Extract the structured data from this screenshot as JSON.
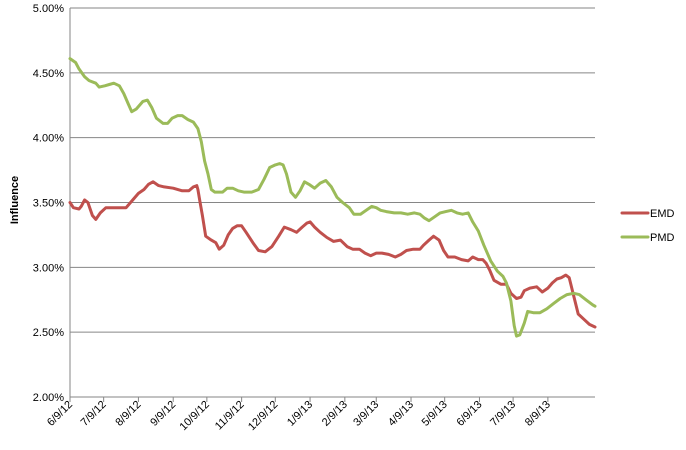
{
  "chart_data": {
    "type": "line",
    "title": "",
    "xlabel": "",
    "ylabel": "Influence",
    "ylim": [
      2.0,
      5.0
    ],
    "y_ticks": [
      "2.00%",
      "2.50%",
      "3.00%",
      "3.50%",
      "4.00%",
      "4.50%",
      "5.00%"
    ],
    "x_range": [
      "2012-06-09",
      "2013-09-20"
    ],
    "x_ticks": [
      "6/9/12",
      "7/9/12",
      "8/9/12",
      "9/9/12",
      "10/9/12",
      "11/9/12",
      "12/9/12",
      "1/9/13",
      "2/9/13",
      "3/9/13",
      "4/9/13",
      "5/9/13",
      "6/9/13",
      "7/9/13",
      "8/9/13"
    ],
    "grid": "horizontal",
    "legend_position": "right",
    "series": [
      {
        "name": "EMD",
        "color": "#c0504d",
        "points": [
          [
            "2012-06-09",
            3.5
          ],
          [
            "2012-06-12",
            3.46
          ],
          [
            "2012-06-17",
            3.45
          ],
          [
            "2012-06-19",
            3.47
          ],
          [
            "2012-06-22",
            3.52
          ],
          [
            "2012-06-25",
            3.5
          ],
          [
            "2012-06-29",
            3.4
          ],
          [
            "2012-07-02",
            3.37
          ],
          [
            "2012-07-06",
            3.42
          ],
          [
            "2012-07-11",
            3.46
          ],
          [
            "2012-07-17",
            3.46
          ],
          [
            "2012-07-23",
            3.46
          ],
          [
            "2012-07-29",
            3.46
          ],
          [
            "2012-08-04",
            3.52
          ],
          [
            "2012-08-09",
            3.57
          ],
          [
            "2012-08-14",
            3.6
          ],
          [
            "2012-08-18",
            3.64
          ],
          [
            "2012-08-22",
            3.66
          ],
          [
            "2012-08-27",
            3.63
          ],
          [
            "2012-09-01",
            3.62
          ],
          [
            "2012-09-09",
            3.61
          ],
          [
            "2012-09-17",
            3.59
          ],
          [
            "2012-09-23",
            3.59
          ],
          [
            "2012-09-27",
            3.62
          ],
          [
            "2012-09-30",
            3.63
          ],
          [
            "2012-10-01",
            3.6
          ],
          [
            "2012-10-03",
            3.5
          ],
          [
            "2012-10-05",
            3.4
          ],
          [
            "2012-10-08",
            3.24
          ],
          [
            "2012-10-13",
            3.21
          ],
          [
            "2012-10-17",
            3.19
          ],
          [
            "2012-10-20",
            3.14
          ],
          [
            "2012-10-24",
            3.17
          ],
          [
            "2012-10-28",
            3.25
          ],
          [
            "2012-11-01",
            3.3
          ],
          [
            "2012-11-05",
            3.32
          ],
          [
            "2012-11-09",
            3.32
          ],
          [
            "2012-11-13",
            3.27
          ],
          [
            "2012-11-19",
            3.19
          ],
          [
            "2012-11-24",
            3.13
          ],
          [
            "2012-11-30",
            3.12
          ],
          [
            "2012-12-06",
            3.16
          ],
          [
            "2012-12-12",
            3.24
          ],
          [
            "2012-12-17",
            3.31
          ],
          [
            "2012-12-23",
            3.29
          ],
          [
            "2012-12-28",
            3.27
          ],
          [
            "2013-01-02",
            3.31
          ],
          [
            "2013-01-06",
            3.34
          ],
          [
            "2013-01-09",
            3.35
          ],
          [
            "2013-01-13",
            3.31
          ],
          [
            "2013-01-18",
            3.27
          ],
          [
            "2013-01-24",
            3.23
          ],
          [
            "2013-01-30",
            3.2
          ],
          [
            "2013-02-05",
            3.21
          ],
          [
            "2013-02-11",
            3.16
          ],
          [
            "2013-02-16",
            3.14
          ],
          [
            "2013-02-22",
            3.14
          ],
          [
            "2013-02-27",
            3.11
          ],
          [
            "2013-03-04",
            3.09
          ],
          [
            "2013-03-09",
            3.11
          ],
          [
            "2013-03-14",
            3.11
          ],
          [
            "2013-03-20",
            3.1
          ],
          [
            "2013-03-26",
            3.08
          ],
          [
            "2013-03-31",
            3.1
          ],
          [
            "2013-04-05",
            3.13
          ],
          [
            "2013-04-11",
            3.14
          ],
          [
            "2013-04-17",
            3.14
          ],
          [
            "2013-04-20",
            3.17
          ],
          [
            "2013-04-25",
            3.21
          ],
          [
            "2013-04-29",
            3.24
          ],
          [
            "2013-05-04",
            3.21
          ],
          [
            "2013-05-08",
            3.13
          ],
          [
            "2013-05-12",
            3.08
          ],
          [
            "2013-05-18",
            3.08
          ],
          [
            "2013-05-24",
            3.06
          ],
          [
            "2013-05-30",
            3.05
          ],
          [
            "2013-06-03",
            3.08
          ],
          [
            "2013-06-08",
            3.06
          ],
          [
            "2013-06-12",
            3.06
          ],
          [
            "2013-06-15",
            3.03
          ],
          [
            "2013-06-18",
            2.98
          ],
          [
            "2013-06-22",
            2.9
          ],
          [
            "2013-06-28",
            2.87
          ],
          [
            "2013-07-03",
            2.87
          ],
          [
            "2013-07-07",
            2.8
          ],
          [
            "2013-07-12",
            2.76
          ],
          [
            "2013-07-16",
            2.77
          ],
          [
            "2013-07-19",
            2.82
          ],
          [
            "2013-07-24",
            2.84
          ],
          [
            "2013-07-30",
            2.85
          ],
          [
            "2013-08-04",
            2.81
          ],
          [
            "2013-08-09",
            2.84
          ],
          [
            "2013-08-13",
            2.88
          ],
          [
            "2013-08-17",
            2.91
          ],
          [
            "2013-08-21",
            2.92
          ],
          [
            "2013-08-25",
            2.94
          ],
          [
            "2013-08-28",
            2.92
          ],
          [
            "2013-09-01",
            2.78
          ],
          [
            "2013-09-05",
            2.64
          ],
          [
            "2013-09-10",
            2.6
          ],
          [
            "2013-09-15",
            2.56
          ],
          [
            "2013-09-20",
            2.54
          ]
        ]
      },
      {
        "name": "PMD",
        "color": "#9bbb59",
        "points": [
          [
            "2012-06-09",
            4.61
          ],
          [
            "2012-06-14",
            4.58
          ],
          [
            "2012-06-17",
            4.53
          ],
          [
            "2012-06-22",
            4.47
          ],
          [
            "2012-06-26",
            4.44
          ],
          [
            "2012-07-02",
            4.42
          ],
          [
            "2012-07-05",
            4.39
          ],
          [
            "2012-07-10",
            4.4
          ],
          [
            "2012-07-14",
            4.41
          ],
          [
            "2012-07-18",
            4.42
          ],
          [
            "2012-07-23",
            4.4
          ],
          [
            "2012-07-27",
            4.34
          ],
          [
            "2012-07-31",
            4.26
          ],
          [
            "2012-08-03",
            4.2
          ],
          [
            "2012-08-07",
            4.22
          ],
          [
            "2012-08-13",
            4.28
          ],
          [
            "2012-08-17",
            4.29
          ],
          [
            "2012-08-21",
            4.23
          ],
          [
            "2012-08-25",
            4.15
          ],
          [
            "2012-08-31",
            4.11
          ],
          [
            "2012-09-04",
            4.11
          ],
          [
            "2012-09-08",
            4.15
          ],
          [
            "2012-09-13",
            4.17
          ],
          [
            "2012-09-17",
            4.17
          ],
          [
            "2012-09-22",
            4.14
          ],
          [
            "2012-09-27",
            4.12
          ],
          [
            "2012-10-01",
            4.07
          ],
          [
            "2012-10-04",
            3.97
          ],
          [
            "2012-10-07",
            3.82
          ],
          [
            "2012-10-10",
            3.72
          ],
          [
            "2012-10-13",
            3.6
          ],
          [
            "2012-10-16",
            3.58
          ],
          [
            "2012-10-19",
            3.58
          ],
          [
            "2012-10-23",
            3.58
          ],
          [
            "2012-10-27",
            3.61
          ],
          [
            "2012-11-01",
            3.61
          ],
          [
            "2012-11-06",
            3.59
          ],
          [
            "2012-11-11",
            3.58
          ],
          [
            "2012-11-18",
            3.58
          ],
          [
            "2012-11-24",
            3.6
          ],
          [
            "2012-11-29",
            3.68
          ],
          [
            "2012-12-04",
            3.77
          ],
          [
            "2012-12-09",
            3.79
          ],
          [
            "2012-12-13",
            3.8
          ],
          [
            "2012-12-16",
            3.79
          ],
          [
            "2012-12-19",
            3.72
          ],
          [
            "2012-12-23",
            3.58
          ],
          [
            "2012-12-27",
            3.54
          ],
          [
            "2012-12-31",
            3.59
          ],
          [
            "2013-01-04",
            3.66
          ],
          [
            "2013-01-08",
            3.64
          ],
          [
            "2013-01-13",
            3.61
          ],
          [
            "2013-01-18",
            3.65
          ],
          [
            "2013-01-23",
            3.67
          ],
          [
            "2013-01-28",
            3.62
          ],
          [
            "2013-02-02",
            3.54
          ],
          [
            "2013-02-07",
            3.5
          ],
          [
            "2013-02-13",
            3.46
          ],
          [
            "2013-02-17",
            3.41
          ],
          [
            "2013-02-23",
            3.41
          ],
          [
            "2013-02-28",
            3.44
          ],
          [
            "2013-03-05",
            3.47
          ],
          [
            "2013-03-09",
            3.46
          ],
          [
            "2013-03-13",
            3.44
          ],
          [
            "2013-03-18",
            3.43
          ],
          [
            "2013-03-25",
            3.42
          ],
          [
            "2013-03-31",
            3.42
          ],
          [
            "2013-04-06",
            3.41
          ],
          [
            "2013-04-12",
            3.42
          ],
          [
            "2013-04-17",
            3.41
          ],
          [
            "2013-04-21",
            3.38
          ],
          [
            "2013-04-25",
            3.36
          ],
          [
            "2013-04-30",
            3.39
          ],
          [
            "2013-05-05",
            3.42
          ],
          [
            "2013-05-10",
            3.43
          ],
          [
            "2013-05-15",
            3.44
          ],
          [
            "2013-05-20",
            3.42
          ],
          [
            "2013-05-25",
            3.41
          ],
          [
            "2013-05-30",
            3.42
          ],
          [
            "2013-06-03",
            3.35
          ],
          [
            "2013-06-08",
            3.28
          ],
          [
            "2013-06-13",
            3.17
          ],
          [
            "2013-06-19",
            3.05
          ],
          [
            "2013-06-25",
            2.97
          ],
          [
            "2013-06-30",
            2.93
          ],
          [
            "2013-07-03",
            2.88
          ],
          [
            "2013-07-07",
            2.74
          ],
          [
            "2013-07-10",
            2.55
          ],
          [
            "2013-07-12",
            2.47
          ],
          [
            "2013-07-15",
            2.48
          ],
          [
            "2013-07-19",
            2.57
          ],
          [
            "2013-07-22",
            2.66
          ],
          [
            "2013-07-27",
            2.65
          ],
          [
            "2013-08-02",
            2.65
          ],
          [
            "2013-08-08",
            2.68
          ],
          [
            "2013-08-14",
            2.72
          ],
          [
            "2013-08-20",
            2.76
          ],
          [
            "2013-08-26",
            2.79
          ],
          [
            "2013-09-01",
            2.8
          ],
          [
            "2013-09-06",
            2.79
          ],
          [
            "2013-09-12",
            2.75
          ],
          [
            "2013-09-18",
            2.71
          ],
          [
            "2013-09-20",
            2.7
          ]
        ]
      }
    ]
  }
}
